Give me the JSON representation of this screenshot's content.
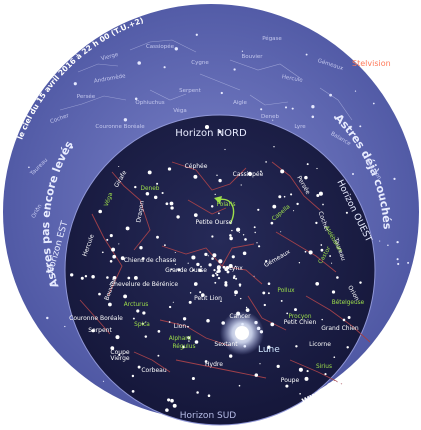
{
  "header": {
    "sky_date": "le ciel du 15 avril 2016 à 22 h 00 (T.U.+2)",
    "brand_corner": "Stelvision"
  },
  "outer_ring": {
    "horizon_north": "Horizon NORD",
    "horizon_east": "Horizon EST",
    "horizon_west": "Horizon OUEST",
    "horizon_south": "Horizon SUD",
    "left_arc": "Astres pas encore levés",
    "right_arc": "Astres déjà couchés",
    "website": "www.Stelvision.com"
  },
  "colors": {
    "outer_disc": "#5f68b3",
    "inner_sky": "#1c1f45",
    "constellation_lines": "#a0404a",
    "labels": "#ffffff",
    "star_names": "#9ee04a",
    "moon_label": "#d0e6ff",
    "ring_text": "#e8ecff"
  },
  "outer_labels": [
    "Cassiopée",
    "Andromède",
    "Persée",
    "Cocher",
    "Gémeaux",
    "Bouvier",
    "Hercule",
    "Lyre",
    "Cygne",
    "Aigle",
    "Ophiuchus",
    "Serpent",
    "Couronne Boréale",
    "Taureau",
    "Orion",
    "Pégase",
    "Balance",
    "Scorpion",
    "Vierge",
    "Véga",
    "Deneb"
  ],
  "constellations": [
    "Céphée",
    "Cassiopée",
    "Petite Ourse",
    "Dragon",
    "Girafe",
    "Persée",
    "Cocher",
    "Hercule",
    "Bouvier",
    "Couronne Boréale",
    "Chevelure de Bérénice",
    "Chiens de chasse",
    "Grande Ourse",
    "Lynx",
    "Gémeaux",
    "Petit Lion",
    "Lion",
    "Cancer",
    "Petit Chien",
    "Serpent",
    "Vierge",
    "Sextant",
    "Hydre",
    "Coupe",
    "Corbeau",
    "Licorne",
    "Poupe",
    "Grand Chien",
    "Orion",
    "Taureau"
  ],
  "bright_stars": [
    "Capella",
    "Véga",
    "Arcturus",
    "Castor",
    "Pollux",
    "Procyon",
    "Régulus",
    "Spica",
    "Sirius",
    "Bételgeuse",
    "Aldébaran",
    "Polaris",
    "Alphard",
    "Deneb"
  ],
  "moon": {
    "label": "Lune"
  }
}
